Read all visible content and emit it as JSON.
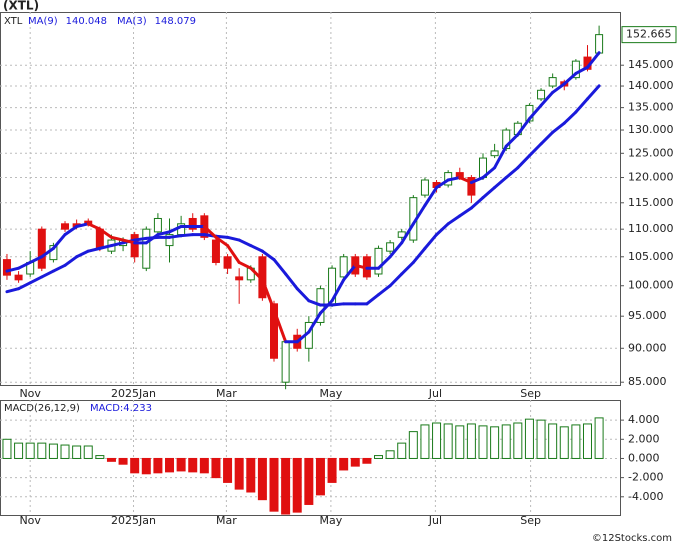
{
  "title": "(XTL)",
  "footer": "©12Stocks.com",
  "chart_data": [
    {
      "type": "candlestick",
      "symbol": "XTL",
      "log_scale": true,
      "grid": true,
      "up_color": "#1a7a1a",
      "down_color": "#e01010",
      "open": [
        104.5,
        101.8,
        102,
        110,
        104.5,
        111,
        111,
        111.5,
        110,
        106,
        107,
        109,
        103,
        109.5,
        107,
        109,
        112,
        112.5,
        108,
        105,
        101.5,
        101,
        105,
        97,
        85,
        92,
        90,
        94,
        97,
        101.5,
        105,
        105,
        102,
        106,
        108.5,
        108,
        116.5,
        119,
        118.5,
        121,
        120,
        120,
        124.5,
        126,
        129,
        132,
        137,
        140,
        141,
        142,
        147,
        148
      ],
      "high": [
        105.5,
        102.5,
        106,
        110.5,
        107.5,
        111.5,
        111.8,
        112,
        110.5,
        109,
        108.5,
        109.5,
        110.5,
        113,
        112,
        112.5,
        113,
        113,
        108.5,
        105.5,
        103,
        103.5,
        105.5,
        97.5,
        91.5,
        93,
        95,
        100,
        103.5,
        105.5,
        105.5,
        105.5,
        107,
        108,
        110,
        116.5,
        120,
        119.5,
        121.5,
        122,
        120.5,
        125,
        127,
        130.5,
        132,
        136,
        139.5,
        143,
        141.5,
        146.5,
        150,
        155
      ],
      "low": [
        101,
        100.5,
        101.5,
        102.5,
        104,
        109.5,
        110,
        110.5,
        106,
        105.5,
        106,
        104,
        102.5,
        109,
        104,
        108.5,
        109.5,
        108,
        103.5,
        102,
        97,
        100.5,
        97.5,
        88,
        84,
        89.5,
        88,
        93.5,
        96.5,
        101,
        101.5,
        101,
        101.5,
        105.5,
        108,
        107.5,
        116,
        117,
        118,
        119.5,
        115,
        119.5,
        124,
        125.5,
        128.5,
        131.5,
        136.5,
        139.5,
        139,
        141.5,
        143.5,
        147.5
      ],
      "close": [
        101.8,
        101,
        104,
        103,
        107,
        110,
        110.5,
        111,
        106.5,
        108,
        108,
        105,
        110,
        112,
        109,
        111,
        110,
        108.5,
        104,
        103,
        101,
        103,
        98,
        88.5,
        91,
        90,
        94,
        99.5,
        103,
        105,
        102,
        101.5,
        106.5,
        107.5,
        109.5,
        116,
        119.5,
        118,
        121,
        120,
        116.5,
        124,
        125.5,
        130,
        131.5,
        135.5,
        139,
        142,
        140,
        146,
        144,
        152.665
      ],
      "series": [
        {
          "name": "MA(9)",
          "color": "#1a1adb",
          "values": [
            99,
            99.5,
            100.5,
            101.5,
            102.5,
            103.5,
            105,
            106,
            106.5,
            107,
            107.5,
            108,
            108.3,
            108.5,
            108.5,
            108.8,
            109,
            109,
            108.7,
            108.5,
            108,
            107,
            106,
            104.5,
            102,
            99.5,
            97.5,
            96.8,
            96.8,
            97,
            97,
            97,
            98.5,
            100,
            102,
            104,
            106.5,
            109,
            111,
            112.5,
            114,
            116,
            118,
            120,
            122,
            124.5,
            127,
            129.5,
            131.5,
            134,
            137,
            140.048
          ]
        },
        {
          "name": "MA(3)",
          "color": "#1a1adb",
          "down_color": "#e01010",
          "values": [
            102.5,
            103,
            104,
            105,
            106.5,
            109,
            110.5,
            111,
            110,
            108.5,
            108,
            107.5,
            107.5,
            109,
            109.5,
            110.5,
            110.5,
            110.5,
            108.5,
            107,
            104,
            103,
            101,
            96,
            91,
            91,
            92.5,
            95.5,
            97.5,
            101,
            103.5,
            103,
            103,
            105,
            107.5,
            111,
            114.5,
            118,
            119.5,
            120,
            119,
            120,
            122,
            126.5,
            129,
            132.5,
            135.5,
            138.5,
            140.5,
            143,
            144.5,
            148.079
          ]
        }
      ],
      "ylim": [
        84.6,
        158.6
      ],
      "yticks": [
        {
          "value": 85,
          "label": "85.000"
        },
        {
          "value": 90,
          "label": "90.000"
        },
        {
          "value": 95,
          "label": "95.000"
        },
        {
          "value": 100,
          "label": "100.000"
        },
        {
          "value": 105,
          "label": "105.000"
        },
        {
          "value": 110,
          "label": "110.000"
        },
        {
          "value": 115,
          "label": "115.000"
        },
        {
          "value": 120,
          "label": "120.000"
        },
        {
          "value": 125,
          "label": "125.000"
        },
        {
          "value": 130,
          "label": "130.000"
        },
        {
          "value": 135,
          "label": "135.000"
        },
        {
          "value": 140,
          "label": "140.000"
        },
        {
          "value": 145,
          "label": "145.000"
        }
      ],
      "xlim": [
        -0.6,
        52.8
      ],
      "xticks": [
        {
          "value": 2,
          "label": "Nov"
        },
        {
          "value": 10.9,
          "label": "2025Jan"
        },
        {
          "value": 18.9,
          "label": "Mar"
        },
        {
          "value": 27.9,
          "label": "May"
        },
        {
          "value": 36.9,
          "label": "Jul"
        },
        {
          "value": 45.1,
          "label": "Sep"
        }
      ]
    },
    {
      "type": "bar",
      "name": "MACD(26,12,9)",
      "legend": "MACD:4.233",
      "up_color": "#1a7a1a",
      "down_color": "#e01010",
      "legend_color": "#1a1adb",
      "values": [
        2.0,
        1.6,
        1.6,
        1.6,
        1.5,
        1.4,
        1.3,
        1.3,
        0.3,
        -0.3,
        -0.6,
        -1.5,
        -1.6,
        -1.5,
        -1.4,
        -1.3,
        -1.4,
        -1.5,
        -2.0,
        -2.5,
        -3.2,
        -3.5,
        -4.3,
        -5.5,
        -5.8,
        -5.6,
        -4.8,
        -3.8,
        -2.5,
        -1.2,
        -0.8,
        -0.5,
        0.3,
        0.8,
        1.6,
        2.8,
        3.5,
        3.7,
        3.6,
        3.4,
        3.6,
        3.4,
        3.3,
        3.5,
        3.7,
        4.1,
        4.0,
        3.6,
        3.3,
        3.5,
        3.6,
        4.233
      ],
      "ylim": [
        -5.9,
        6.1
      ],
      "yticks": [
        {
          "value": -4,
          "label": "-4.000"
        },
        {
          "value": -2,
          "label": "-2.000"
        },
        {
          "value": 0,
          "label": "0.000"
        },
        {
          "value": 2,
          "label": "2.000"
        },
        {
          "value": 4,
          "label": "4.000"
        }
      ],
      "xlim": [
        -0.6,
        52.8
      ],
      "xticks": [
        {
          "value": 2,
          "label": "Nov"
        },
        {
          "value": 10.9,
          "label": "2025Jan"
        },
        {
          "value": 18.9,
          "label": "Mar"
        },
        {
          "value": 27.9,
          "label": "May"
        },
        {
          "value": 36.9,
          "label": "Jul"
        },
        {
          "value": 45.1,
          "label": "Sep"
        }
      ]
    }
  ]
}
